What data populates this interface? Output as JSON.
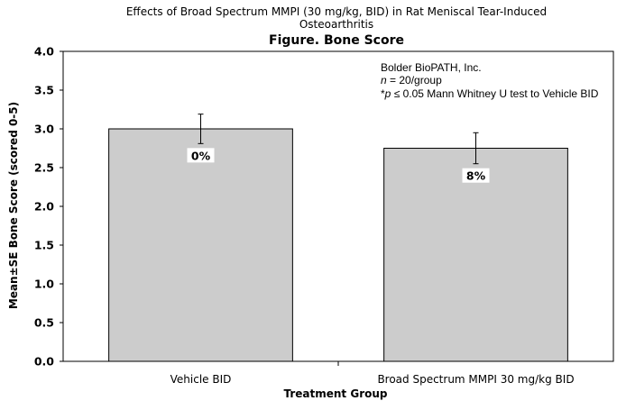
{
  "header": {
    "subtitle_line1": "Effects of Broad Spectrum MMPI (30 mg/kg, BID) in Rat Meniscal Tear-Induced",
    "subtitle_line2": "Osteoarthritis"
  },
  "annotation": {
    "line1": "Bolder BioPATH, Inc.",
    "line2_italic": "n",
    "line2_rest": " = 20/group",
    "line3_prefix": "*",
    "line3_italic": "p",
    "line3_rest": " ≤ 0.05 Mann Whitney U test to Vehicle BID"
  },
  "chart_data": {
    "type": "bar",
    "title": "Figure. Bone Score",
    "xlabel": "Treatment Group",
    "ylabel": "Mean±SE Bone Score (scored 0-5)",
    "ylim": [
      0,
      4
    ],
    "yticks": [
      "0.0",
      "0.5",
      "1.0",
      "1.5",
      "2.0",
      "2.5",
      "3.0",
      "3.5",
      "4.0"
    ],
    "categories": [
      "Vehicle BID",
      "Broad Spectrum MMPI 30 mg/kg BID"
    ],
    "values": [
      3.0,
      2.75
    ],
    "errors": [
      0.19,
      0.2
    ],
    "data_labels": [
      "0%",
      "8%"
    ],
    "bar_color": "#cccccc",
    "grid": false,
    "legend": "none"
  }
}
